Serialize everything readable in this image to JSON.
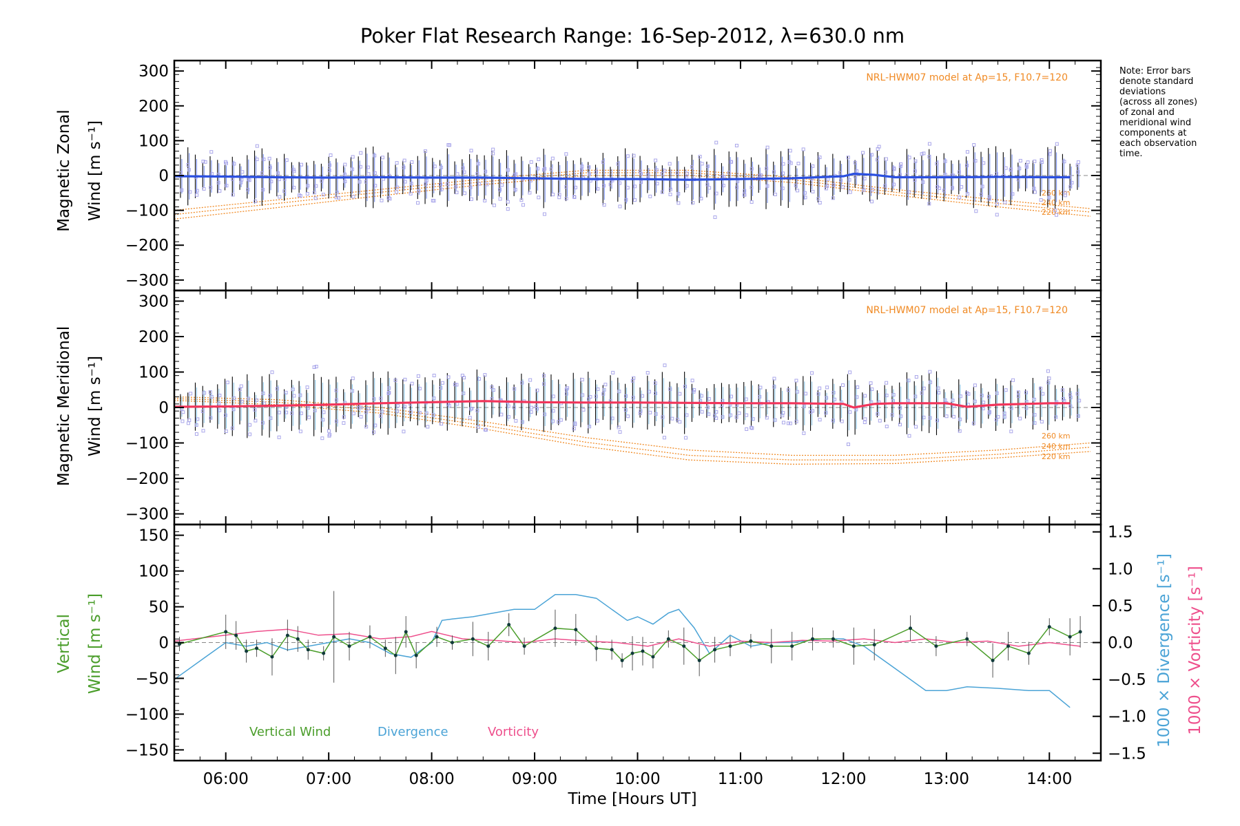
{
  "title": "Poker Flat Research Range: 16-Sep-2012, λ=630.0 nm",
  "note_lines": [
    "Note: Error bars",
    "denote standard",
    "deviations",
    "(across all zones)",
    "of zonal and",
    "meridional wind",
    "components at",
    "each observation",
    "time."
  ],
  "colors": {
    "zonal": "#2a4fe0",
    "meridional": "#f2355b",
    "vertical": "#4a9d2a",
    "divergence": "#4aa3d6",
    "vorticity": "#ee4f8c",
    "model": "#f08a24",
    "scatter": "#a9a6ea",
    "errorbar": "#000000"
  },
  "chart_data": [
    {
      "type": "line",
      "panel": "top",
      "ylabel_line1": "Magnetic Zonal",
      "ylabel_line2": "Wind [m s⁻¹]",
      "model_label": "NRL-HWM07 model at Ap=15, F10.7=120",
      "model_altitudes": [
        "260 km",
        "240 km",
        "220 km"
      ],
      "xlim": [
        5.5,
        14.5
      ],
      "ylim": [
        -330,
        330
      ],
      "yticks": [
        300,
        200,
        100,
        0,
        -100,
        -200,
        -300
      ],
      "yticklabels": [
        "300",
        "200",
        "100",
        "0",
        "−100",
        "−200",
        "−300"
      ],
      "series": [
        {
          "name": "Zonal wind",
          "x": [
            5.5,
            6.0,
            6.5,
            7.0,
            7.5,
            8.0,
            8.5,
            9.0,
            9.5,
            10.0,
            10.5,
            11.0,
            11.5,
            12.0,
            12.1,
            12.3,
            12.5,
            13.0,
            13.5,
            14.0,
            14.2
          ],
          "y": [
            -2,
            -3,
            -5,
            -6,
            -5,
            -6,
            -6,
            -8,
            -10,
            -10,
            -12,
            -10,
            -8,
            -2,
            5,
            2,
            -5,
            -5,
            -4,
            -5,
            -5
          ]
        },
        {
          "name": "Model 260 km",
          "x": [
            5.5,
            6.5,
            7.5,
            8.5,
            9.5,
            10.5,
            11.5,
            12.5,
            13.5,
            14.4
          ],
          "y": [
            -100,
            -70,
            -40,
            -10,
            15,
            15,
            -5,
            -40,
            -70,
            -95
          ]
        },
        {
          "name": "Model 240 km",
          "x": [
            5.5,
            6.5,
            7.5,
            8.5,
            9.5,
            10.5,
            11.5,
            12.5,
            13.5,
            14.4
          ],
          "y": [
            -112,
            -80,
            -48,
            -18,
            8,
            8,
            -12,
            -48,
            -80,
            -105
          ]
        },
        {
          "name": "Model 220 km",
          "x": [
            5.5,
            6.5,
            7.5,
            8.5,
            9.5,
            10.5,
            11.5,
            12.5,
            13.5,
            14.4
          ],
          "y": [
            -125,
            -92,
            -58,
            -26,
            0,
            0,
            -20,
            -56,
            -90,
            -117
          ]
        }
      ]
    },
    {
      "type": "line",
      "panel": "middle",
      "ylabel_line1": "Magnetic Meridional",
      "ylabel_line2": "Wind [m s⁻¹]",
      "model_label": "NRL-HWM07 model at Ap=15, F10.7=120",
      "model_altitudes": [
        "260 km",
        "240 km",
        "220 km"
      ],
      "xlim": [
        5.5,
        14.5
      ],
      "ylim": [
        -330,
        330
      ],
      "yticks": [
        300,
        200,
        100,
        0,
        -100,
        -200,
        -300
      ],
      "yticklabels": [
        "300",
        "200",
        "100",
        "0",
        "−100",
        "−200",
        "−300"
      ],
      "series": [
        {
          "name": "Meridional wind",
          "x": [
            5.5,
            6.0,
            6.5,
            7.0,
            7.5,
            8.0,
            8.5,
            9.0,
            9.5,
            10.0,
            10.5,
            11.0,
            11.5,
            12.0,
            12.1,
            12.3,
            12.5,
            13.0,
            13.2,
            13.5,
            14.0,
            14.2
          ],
          "y": [
            2,
            3,
            5,
            8,
            12,
            15,
            18,
            15,
            14,
            14,
            13,
            12,
            12,
            10,
            0,
            10,
            12,
            12,
            2,
            8,
            12,
            12
          ]
        },
        {
          "name": "Model 260 km",
          "x": [
            5.5,
            6.5,
            7.5,
            8.5,
            9.5,
            10.5,
            11.5,
            12.5,
            13.5,
            14.4
          ],
          "y": [
            30,
            22,
            0,
            -40,
            -85,
            -120,
            -135,
            -135,
            -120,
            -100
          ]
        },
        {
          "name": "Model 240 km",
          "x": [
            5.5,
            6.5,
            7.5,
            8.5,
            9.5,
            10.5,
            11.5,
            12.5,
            13.5,
            14.4
          ],
          "y": [
            25,
            15,
            -8,
            -50,
            -98,
            -135,
            -148,
            -148,
            -132,
            -112
          ]
        },
        {
          "name": "Model 220 km",
          "x": [
            5.5,
            6.5,
            7.5,
            8.5,
            9.5,
            10.5,
            11.5,
            12.5,
            13.5,
            14.4
          ],
          "y": [
            20,
            8,
            -16,
            -60,
            -110,
            -148,
            -160,
            -158,
            -142,
            -124
          ]
        }
      ]
    },
    {
      "type": "line",
      "panel": "bottom",
      "ylabel_left_line1": "Vertical",
      "ylabel_left_line2": "Wind [m s⁻¹]",
      "ylabel_right_1": "1000 × Divergence [s⁻¹]",
      "ylabel_right_2": "1000 × Vorticity [s⁻¹]",
      "xlabel": "Time [Hours UT]",
      "xticks": [
        6,
        7,
        8,
        9,
        10,
        11,
        12,
        13,
        14
      ],
      "xticklabels": [
        "06:00",
        "07:00",
        "08:00",
        "09:00",
        "10:00",
        "11:00",
        "12:00",
        "13:00",
        "14:00"
      ],
      "xlim": [
        5.5,
        14.5
      ],
      "ylim": [
        -165,
        165
      ],
      "yticks": [
        150,
        100,
        50,
        0,
        -50,
        -100,
        -150
      ],
      "yticklabels": [
        "150",
        "100",
        "50",
        "0",
        "−50",
        "−100",
        "−150"
      ],
      "ylim_right": [
        -1.6,
        1.6
      ],
      "yticks_right": [
        1.5,
        1.0,
        0.5,
        0.0,
        -0.5,
        -1.0,
        -1.5
      ],
      "yticklabels_right": [
        "1.5",
        "1.0",
        "0.5",
        "0.0",
        "−0.5",
        "−1.0",
        "−1.5"
      ],
      "legend": [
        "Vertical Wind",
        "Divergence",
        "Vorticity"
      ],
      "series": [
        {
          "name": "Vertical Wind",
          "axis": "left",
          "x": [
            5.55,
            6.0,
            6.1,
            6.2,
            6.3,
            6.45,
            6.6,
            6.7,
            6.8,
            6.95,
            7.05,
            7.2,
            7.4,
            7.55,
            7.65,
            7.75,
            7.85,
            8.05,
            8.2,
            8.4,
            8.55,
            8.75,
            8.9,
            9.2,
            9.4,
            9.6,
            9.75,
            9.85,
            9.95,
            10.05,
            10.15,
            10.3,
            10.45,
            10.6,
            10.75,
            10.9,
            11.1,
            11.3,
            11.5,
            11.7,
            11.9,
            12.1,
            12.3,
            12.65,
            12.9,
            13.2,
            13.45,
            13.6,
            13.8,
            14.0,
            14.2,
            14.3
          ],
          "y": [
            -2,
            15,
            10,
            -12,
            -8,
            -20,
            10,
            5,
            -10,
            -15,
            8,
            -5,
            8,
            -8,
            -18,
            15,
            -18,
            8,
            0,
            5,
            -5,
            25,
            -5,
            20,
            18,
            -8,
            -10,
            -25,
            -15,
            -12,
            -20,
            5,
            -5,
            -25,
            -10,
            -5,
            2,
            -5,
            -5,
            5,
            5,
            -5,
            -3,
            20,
            -5,
            5,
            -25,
            -5,
            -15,
            22,
            8,
            15
          ]
        },
        {
          "name": "Divergence",
          "axis": "right",
          "x": [
            5.5,
            5.8,
            6.0,
            6.2,
            6.4,
            6.6,
            6.8,
            7.0,
            7.2,
            7.4,
            7.6,
            7.8,
            8.0,
            8.1,
            8.2,
            8.4,
            8.6,
            8.8,
            9.0,
            9.2,
            9.4,
            9.6,
            9.75,
            9.9,
            10.0,
            10.15,
            10.3,
            10.4,
            10.55,
            10.7,
            10.9,
            11.1,
            11.3,
            11.5,
            11.8,
            12.0,
            12.2,
            12.5,
            12.8,
            13.0,
            13.2,
            13.5,
            13.8,
            14.0,
            14.2
          ],
          "y": [
            -0.5,
            -0.2,
            0.0,
            -0.05,
            0.0,
            -0.1,
            -0.05,
            0.0,
            0.05,
            0.0,
            -0.15,
            -0.2,
            0.0,
            0.3,
            0.32,
            0.35,
            0.4,
            0.45,
            0.45,
            0.65,
            0.65,
            0.6,
            0.45,
            0.3,
            0.35,
            0.25,
            0.4,
            0.45,
            0.2,
            -0.15,
            0.1,
            -0.05,
            0.0,
            0.0,
            0.05,
            0.05,
            -0.05,
            -0.35,
            -0.65,
            -0.65,
            -0.6,
            -0.62,
            -0.65,
            -0.65,
            -0.88
          ]
        },
        {
          "name": "Vorticity",
          "axis": "right",
          "x": [
            5.5,
            6.0,
            6.3,
            6.6,
            6.9,
            7.2,
            7.5,
            7.8,
            8.0,
            8.3,
            8.6,
            8.9,
            9.2,
            9.5,
            9.8,
            10.1,
            10.4,
            10.7,
            11.0,
            11.3,
            11.6,
            11.9,
            12.2,
            12.5,
            12.8,
            13.1,
            13.4,
            13.7,
            14.0,
            14.3
          ],
          "y": [
            0.02,
            0.1,
            0.15,
            0.18,
            0.1,
            0.12,
            0.05,
            0.08,
            0.15,
            0.05,
            0.03,
            0.0,
            0.05,
            0.02,
            0.0,
            -0.05,
            0.05,
            -0.05,
            0.02,
            0.0,
            0.03,
            0.02,
            0.05,
            0.0,
            0.05,
            0.0,
            0.02,
            -0.05,
            0.0,
            -0.05
          ]
        }
      ]
    }
  ]
}
